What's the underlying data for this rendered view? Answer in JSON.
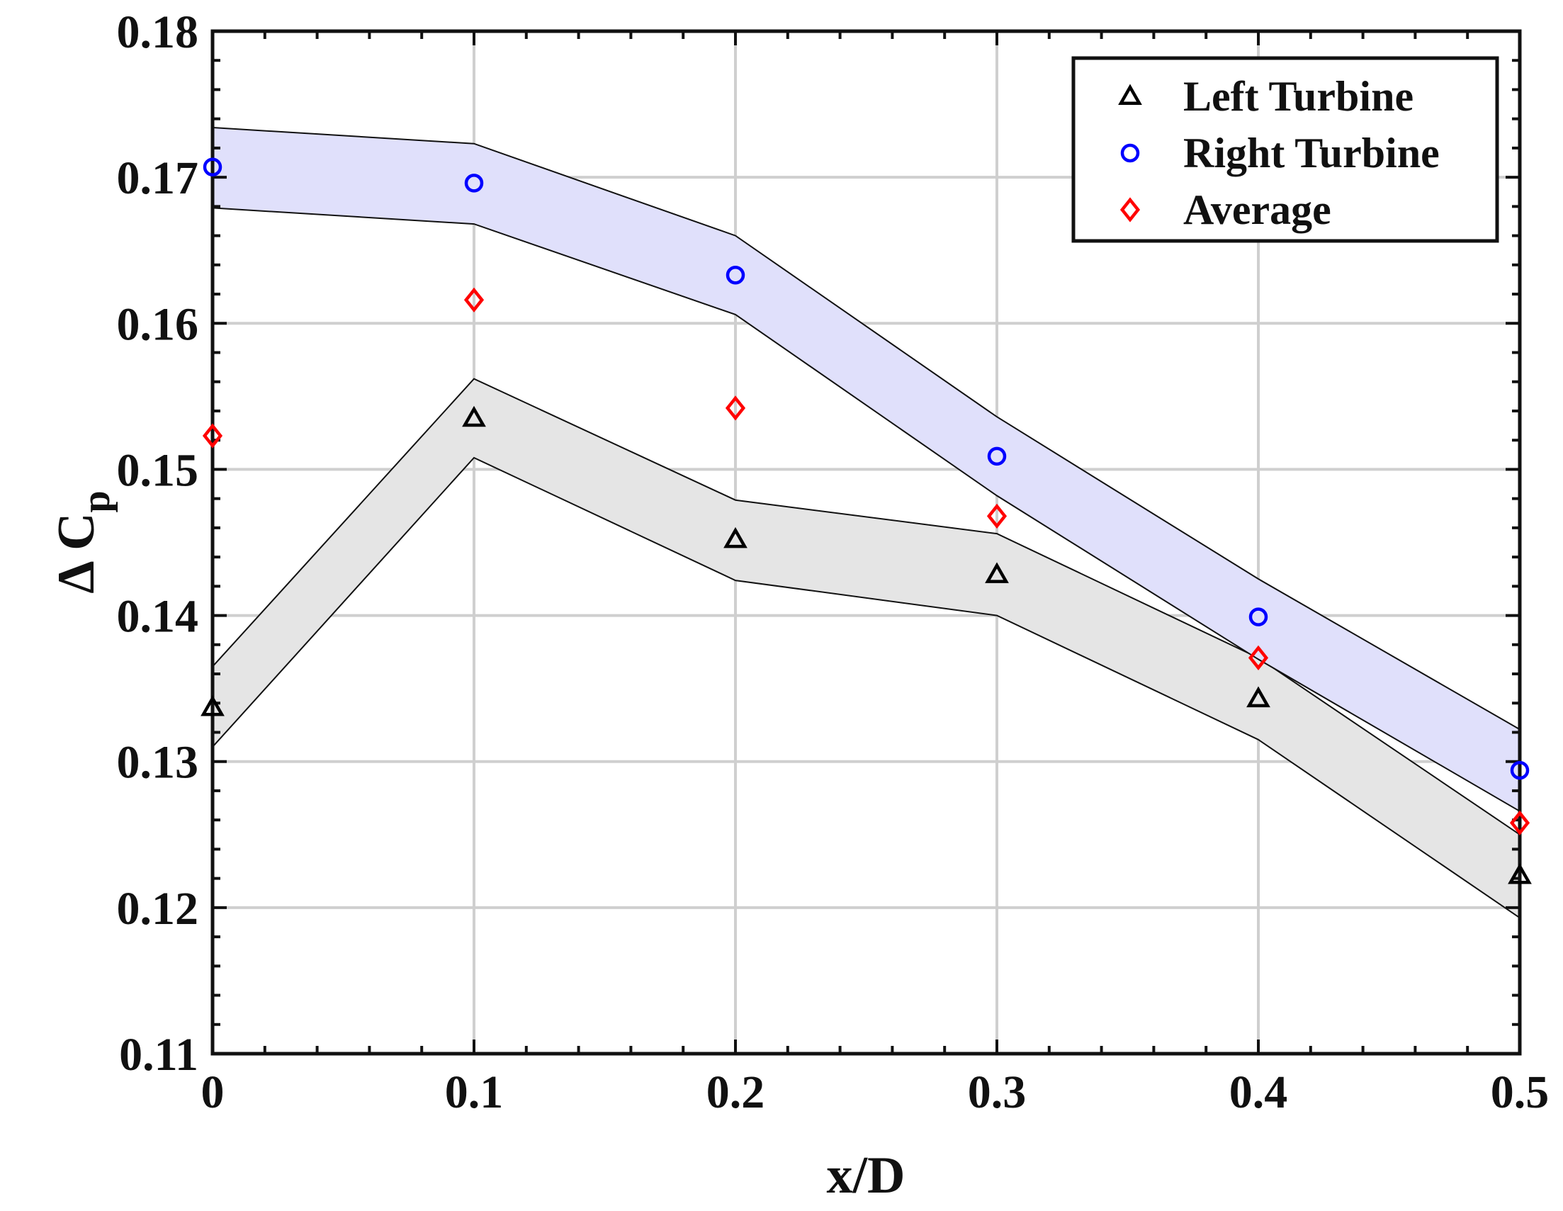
{
  "chart_data": {
    "type": "scatter",
    "title": "",
    "xlabel": "x/D",
    "ylabel": {
      "main": "Δ C",
      "sub": "p"
    },
    "xlim": [
      0,
      0.5
    ],
    "ylim": [
      0.11,
      0.18
    ],
    "xticks": [
      0,
      0.1,
      0.2,
      0.3,
      0.4,
      0.5
    ],
    "xtick_labels": [
      "0",
      "0.1",
      "0.2",
      "0.3",
      "0.4",
      "0.5"
    ],
    "yticks": [
      0.11,
      0.12,
      0.13,
      0.14,
      0.15,
      0.16,
      0.17,
      0.18
    ],
    "ytick_labels": [
      "0.11",
      "0.12",
      "0.13",
      "0.14",
      "0.15",
      "0.16",
      "0.17",
      "0.18"
    ],
    "grid": true,
    "legend_position": "top-right",
    "x": [
      0,
      0.1,
      0.2,
      0.3,
      0.4,
      0.5
    ],
    "series": [
      {
        "name": "Left Turbine",
        "marker": "triangle",
        "color": "#000000",
        "values": [
          0.1337,
          0.1535,
          0.1452,
          0.1428,
          0.1343,
          0.1222
        ]
      },
      {
        "name": "Right Turbine",
        "marker": "circle",
        "color": "#0000ff",
        "values": [
          0.1707,
          0.1696,
          0.1633,
          0.1509,
          0.1399,
          0.1294
        ]
      },
      {
        "name": "Average",
        "marker": "diamond",
        "color": "#ff0000",
        "values": [
          0.1523,
          0.1616,
          0.1542,
          0.1468,
          0.1371,
          0.1258
        ]
      }
    ],
    "bands": [
      {
        "name": "left-turbine-band",
        "fill": "#e5e5e5",
        "upper": [
          0.1365,
          0.1562,
          0.1479,
          0.1456,
          0.1371,
          0.125
        ],
        "lower": [
          0.131,
          0.1508,
          0.1424,
          0.14,
          0.1315,
          0.1193
        ]
      },
      {
        "name": "right-turbine-band",
        "fill": "#e0e0fb",
        "upper": [
          0.1734,
          0.1723,
          0.166,
          0.1536,
          0.1425,
          0.1322
        ],
        "lower": [
          0.1679,
          0.1668,
          0.1606,
          0.1482,
          0.137,
          0.1266
        ]
      }
    ]
  }
}
